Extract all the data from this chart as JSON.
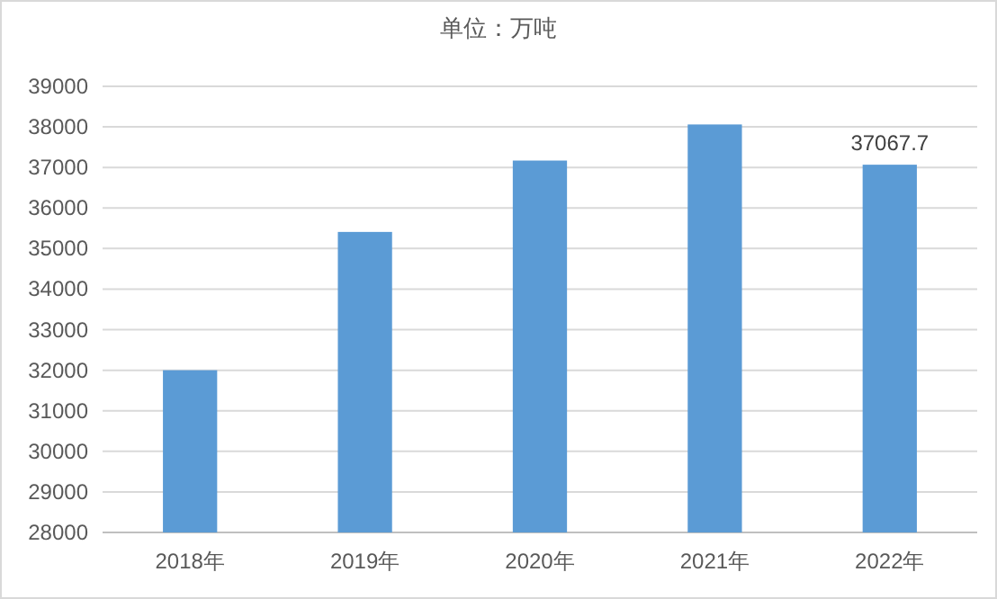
{
  "chart_data": {
    "type": "bar",
    "title": "单位：万吨",
    "categories": [
      "2018年",
      "2019年",
      "2020年",
      "2021年",
      "2022年"
    ],
    "values": [
      32000,
      35410,
      37170,
      38060,
      37067.7
    ],
    "value_labels": [
      null,
      null,
      null,
      null,
      "37067.7"
    ],
    "color": "#5b9bd5",
    "ylim": [
      28000,
      39000
    ],
    "yticks": [
      28000,
      29000,
      30000,
      31000,
      32000,
      33000,
      34000,
      35000,
      36000,
      37000,
      38000,
      39000
    ],
    "grid": "y"
  }
}
